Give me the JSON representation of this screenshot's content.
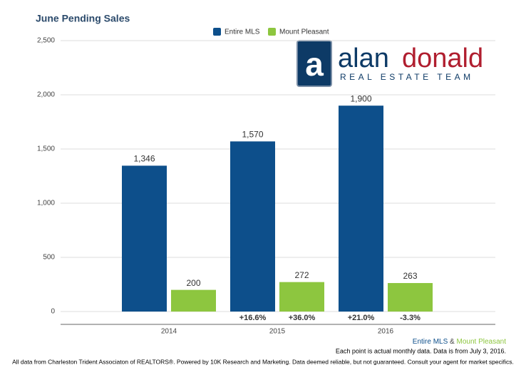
{
  "chart_data": {
    "type": "bar",
    "title": "June Pending Sales",
    "categories": [
      "2014",
      "2015",
      "2016"
    ],
    "series": [
      {
        "name": "Entire MLS",
        "color": "#0d4f8b",
        "values": [
          1346,
          1570,
          1900
        ],
        "value_labels": [
          "1,346",
          "1,570",
          "1,900"
        ],
        "change_labels": [
          null,
          "+16.6%",
          "+21.0%"
        ]
      },
      {
        "name": "Mount Pleasant",
        "color": "#8dc63f",
        "values": [
          200,
          272,
          263
        ],
        "change_labels": [
          null,
          "+36.0%",
          "-3.3%"
        ]
      }
    ],
    "ylim": [
      0,
      2500
    ],
    "yticks": [
      0,
      500,
      {
        "value": 1000,
        "label": "1,000"
      },
      {
        "value": 1500,
        "label": "1,500"
      },
      {
        "value": 2000,
        "label": "2,000"
      },
      {
        "value": 2500,
        "label": "2,500"
      }
    ],
    "grid": true,
    "legend": "top",
    "logo": {
      "mark": "a",
      "first": "alan",
      "second": "donald",
      "tagline": "REAL ESTATE TEAM"
    },
    "series_joiner": "&",
    "note": "Each point is actual monthly data. Data is from July 3, 2016.",
    "disclaimer": "All data from Charleston Trident Associaton of REALTORS®. Powered by 10K Research and Marketing. Data deemed reliable, but not guaranteed. Consult your agent for market specifics."
  }
}
